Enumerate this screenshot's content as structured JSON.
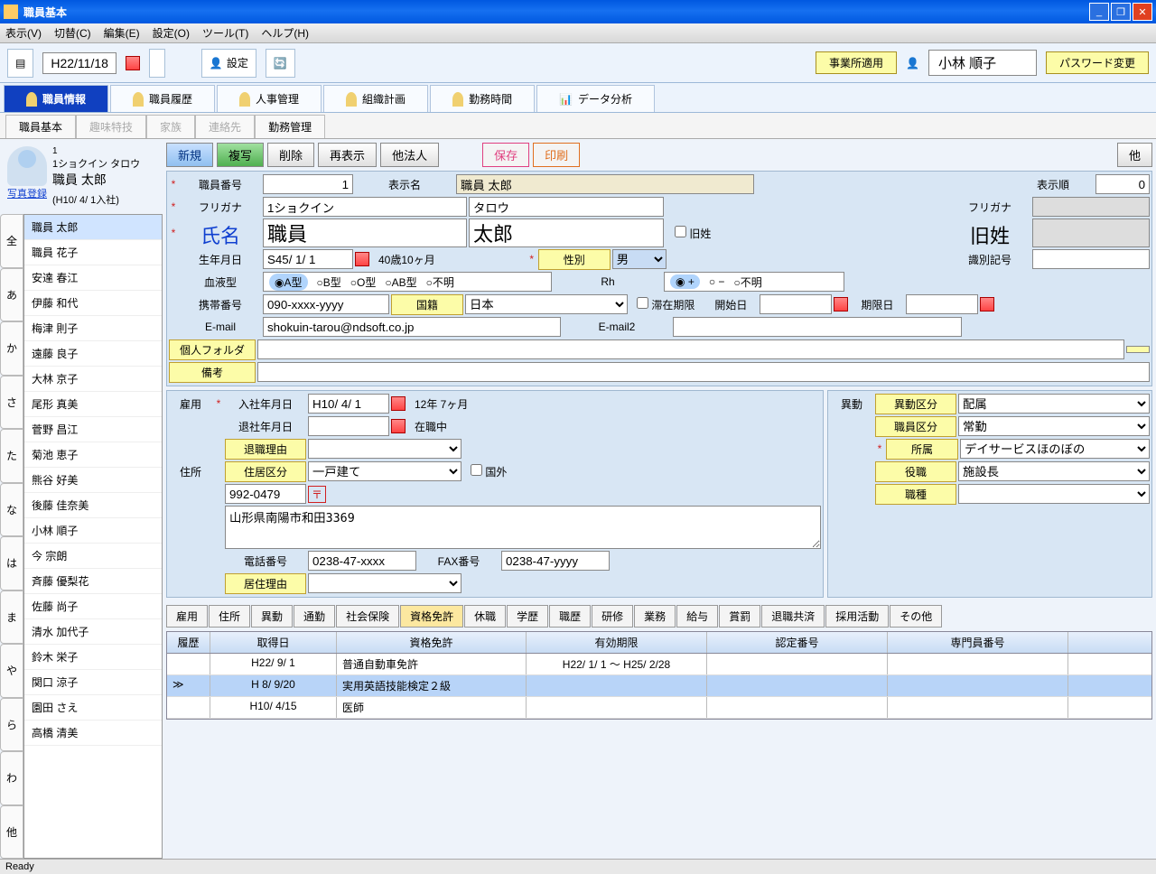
{
  "window": {
    "title": "職員基本"
  },
  "menu": [
    "表示(V)",
    "切替(C)",
    "編集(E)",
    "設定(O)",
    "ツール(T)",
    "ヘルプ(H)"
  ],
  "toolbar1": {
    "date": "H22/11/18",
    "settings": "設定",
    "apply_office": "事業所適用",
    "user": "小林 順子",
    "pwchange": "パスワード変更"
  },
  "bigtabs": [
    "職員情報",
    "職員履歴",
    "人事管理",
    "組織計画",
    "勤務時間",
    "データ分析"
  ],
  "subtabs": [
    "職員基本",
    "趣味特技",
    "家族",
    "連絡先",
    "勤務管理"
  ],
  "profile": {
    "kana": "1ショクイン タロウ",
    "name": "職員 太郎",
    "hire": "(H10/ 4/ 1入社)",
    "photo_link": "写真登録"
  },
  "kana_index": [
    "全",
    "あ",
    "か",
    "さ",
    "た",
    "な",
    "は",
    "ま",
    "や",
    "ら",
    "わ",
    "他"
  ],
  "namelist": [
    "職員 太郎",
    "職員 花子",
    "安達 春江",
    "伊藤 和代",
    "梅津 則子",
    "遠藤 良子",
    "大林 京子",
    "尾形 真美",
    "菅野 昌江",
    "菊池 恵子",
    "熊谷 好美",
    "後藤 佳奈美",
    "小林 順子",
    "今 宗朗",
    "斉藤 優梨花",
    "佐藤 尚子",
    "清水 加代子",
    "鈴木 栄子",
    "関口 涼子",
    "園田 さえ",
    "高橋 清美"
  ],
  "actions": {
    "new": "新規",
    "copy": "複写",
    "delete": "削除",
    "redisplay": "再表示",
    "other_corp": "他法人",
    "save": "保存",
    "print": "印刷",
    "other": "他"
  },
  "form": {
    "emp_no_label": "職員番号",
    "emp_no": "1",
    "disp_name_label": "表示名",
    "disp_name": "職員 太郎",
    "disp_order_label": "表示順",
    "disp_order": "0",
    "furigana_label": "フリガナ",
    "furigana1": "1ショクイン",
    "furigana2": "タロウ",
    "furigana2_label": "フリガナ",
    "name_label": "氏名",
    "last": "職員",
    "first": "太郎",
    "old_surname_chk": "旧姓",
    "old_surname_label": "旧姓",
    "birth_label": "生年月日",
    "birth": "S45/ 1/ 1",
    "age": "40歳10ヶ月",
    "sex_label": "性別",
    "sex": "男",
    "id_code_label": "識別記号",
    "blood_label": "血液型",
    "blood_opts": [
      "A型",
      "B型",
      "O型",
      "AB型",
      "不明"
    ],
    "rh_label": "Rh",
    "rh_opts": [
      "+",
      "−",
      "不明"
    ],
    "mobile_label": "携帯番号",
    "mobile": "090-xxxx-yyyy",
    "nationality_label": "国籍",
    "nationality": "日本",
    "stay_chk": "滞在期限",
    "start_label": "開始日",
    "limit_label": "期限日",
    "email_label": "E-mail",
    "email": "shokuin-tarou@ndsoft.co.jp",
    "email2_label": "E-mail2",
    "folder_label": "個人フォルダ",
    "remarks_label": "備考",
    "employment_label": "雇用",
    "hire_date_label": "入社年月日",
    "hire_date": "H10/ 4/ 1",
    "tenure": "12年 7ヶ月",
    "leave_date_label": "退社年月日",
    "status": "在職中",
    "leave_reason_label": "退職理由",
    "transfer_label": "異動",
    "transfer_class_label": "異動区分",
    "transfer_class": "配属",
    "emp_class_label": "職員区分",
    "emp_class": "常勤",
    "dept_label": "所属",
    "dept": "デイサービスほのぼの",
    "position_label": "役職",
    "position": "施設長",
    "job_label": "職種",
    "address_label": "住所",
    "residence_class_label": "住居区分",
    "residence_class": "一戸建て",
    "abroad_chk": "国外",
    "postal": "992-0479",
    "address": "山形県南陽市和田3369",
    "tel_label": "電話番号",
    "tel": "0238-47-xxxx",
    "fax_label": "FAX番号",
    "fax": "0238-47-yyyy",
    "residence_reason_label": "居住理由"
  },
  "bottom_tabs": [
    "雇用",
    "住所",
    "異動",
    "通勤",
    "社会保険",
    "資格免許",
    "休職",
    "学歴",
    "職歴",
    "研修",
    "業務",
    "給与",
    "賞罰",
    "退職共済",
    "採用活動",
    "その他"
  ],
  "grid": {
    "head": [
      "履歴",
      "取得日",
      "資格免許",
      "有効期限",
      "認定番号",
      "専門員番号"
    ],
    "rows": [
      {
        "a": "",
        "b": "H22/ 9/ 1",
        "c": "普通自動車免許",
        "d": "H22/ 1/ 1 ～ H25/ 2/28",
        "e": "",
        "f": ""
      },
      {
        "a": "≫",
        "b": "H 8/ 9/20",
        "c": "実用英語技能検定２級",
        "d": "",
        "e": "",
        "f": ""
      },
      {
        "a": "",
        "b": "H10/ 4/15",
        "c": "医師",
        "d": "",
        "e": "",
        "f": ""
      }
    ]
  },
  "status": "Ready"
}
